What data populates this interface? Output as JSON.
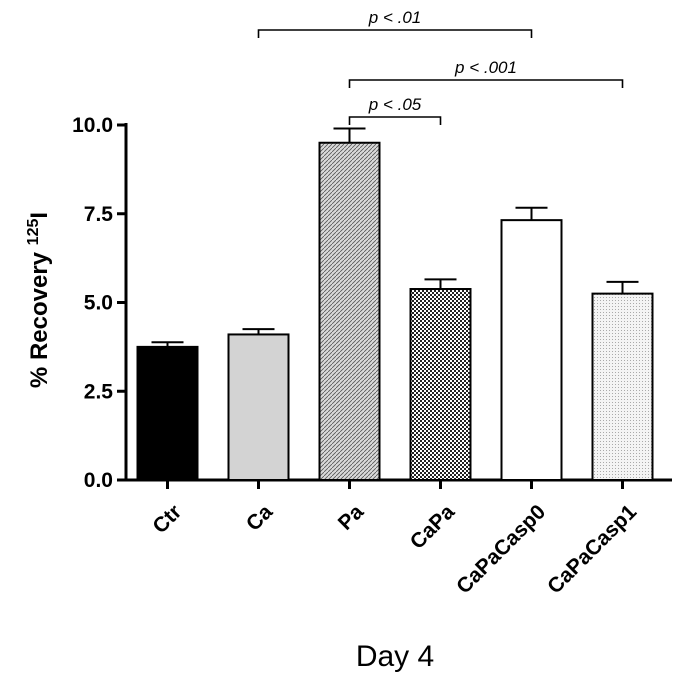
{
  "chart_data": {
    "type": "bar",
    "title": "",
    "xlabel": "Day 4",
    "ylabel": "% Recovery",
    "ylabel_superscript": "125",
    "ylabel_suffix": "I",
    "ylim": [
      0,
      10
    ],
    "yticks": [
      "0.0",
      "2.5",
      "5.0",
      "7.5",
      "10.0"
    ],
    "categories": [
      "Ctr",
      "Ca",
      "Pa",
      "CaPa",
      "CaPaCasp0",
      "CaPaCasp1"
    ],
    "values": [
      3.75,
      4.1,
      9.5,
      5.38,
      7.32,
      5.25
    ],
    "errors": [
      0.13,
      0.15,
      0.4,
      0.27,
      0.35,
      0.33
    ],
    "fills": [
      "#000000",
      "#d3d3d3",
      "pattern-diag",
      "pattern-check",
      "#ffffff",
      "pattern-dots"
    ],
    "significance": [
      {
        "label": "p < .01",
        "from": "Ca",
        "to": "CaPaCasp0"
      },
      {
        "label": "p < .001",
        "from": "Pa",
        "to": "CaPaCasp1"
      },
      {
        "label": "p < .05",
        "from": "Pa",
        "to": "CaPa"
      }
    ],
    "grid": false,
    "legend": "none"
  }
}
